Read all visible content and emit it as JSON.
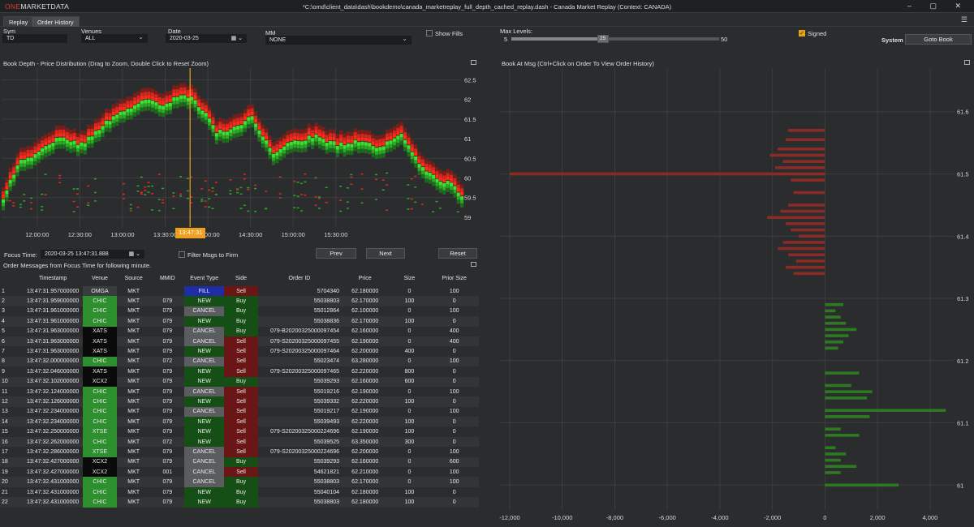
{
  "app": {
    "logo_one": "ONE",
    "logo_rest": "MARKETDATA",
    "title": "*C:\\omd\\client_data\\dash\\bookdemo\\canada_marketreplay_full_depth_cached_replay.dash - Canada Market Replay (Context: CANADA)",
    "win_controls": "–  ▢  ✕"
  },
  "tabs": [
    {
      "label": "Replay"
    },
    {
      "label": "Order History"
    }
  ],
  "controls": {
    "sym_label": "Sym",
    "sym_value": "TD",
    "venues_label": "Venues",
    "venues_value": "ALL",
    "date_label": "Date",
    "date_value": "2020-03-25",
    "mm_label": "MM",
    "mm_value": "NONE",
    "show_fills_label": "Show Fills",
    "max_levels_label": "Max Levels:",
    "max_min": "5",
    "max_val": "25",
    "max_max": "50",
    "max_level_fraction": 0.44,
    "signed_label": "Signed",
    "system_label": "System",
    "goto_book": "Goto Book"
  },
  "left_chart": {
    "title": "Book Depth - Price Distribution (Drag to Zoom, Double Click to Reset Zoom)",
    "focus_marker": "13:47:31"
  },
  "focus": {
    "label": "Focus Time:",
    "value": "2020-03-25 13:47:31.888",
    "filter_label": "Filter Msgs to Firm",
    "prev": "Prev",
    "next": "Next",
    "reset": "Reset"
  },
  "orders": {
    "title": "Order Messages from Focus Time for following minute.",
    "columns": [
      "",
      "Timestamp",
      "Venue",
      "Source",
      "MMID",
      "Event Type",
      "Side",
      "Order ID",
      "Price",
      "Size",
      "Prior Size"
    ],
    "rows": [
      [
        "1",
        "13:47:31.957000000",
        "OMGA",
        "MKT",
        "",
        "FILL",
        "Sell",
        "5704340",
        "62.180000",
        "0",
        "100"
      ],
      [
        "2",
        "13:47:31.959000000",
        "CHIC",
        "MKT",
        "079",
        "NEW",
        "Buy",
        "55038803",
        "62.170000",
        "100",
        "0"
      ],
      [
        "3",
        "13:47:31.961000000",
        "CHIC",
        "MKT",
        "079",
        "CANCEL",
        "Buy",
        "55012864",
        "62.100000",
        "0",
        "100"
      ],
      [
        "4",
        "13:47:31.961000000",
        "CHIC",
        "MKT",
        "079",
        "NEW",
        "Buy",
        "55038836",
        "62.170000",
        "100",
        "0"
      ],
      [
        "5",
        "13:47:31.963000000",
        "XATS",
        "MKT",
        "079",
        "CANCEL",
        "Buy",
        "079-B20200325000097454",
        "62.160000",
        "0",
        "400"
      ],
      [
        "6",
        "13:47:31.963000000",
        "XATS",
        "MKT",
        "079",
        "CANCEL",
        "Sell",
        "079-S20200325000097455",
        "62.190000",
        "0",
        "400"
      ],
      [
        "7",
        "13:47:31.963000000",
        "XATS",
        "MKT",
        "079",
        "NEW",
        "Sell",
        "079-S20200325000097464",
        "62.200000",
        "400",
        "0"
      ],
      [
        "8",
        "13:47:32.000000000",
        "CHIC",
        "MKT",
        "072",
        "CANCEL",
        "Sell",
        "55023474",
        "63.280000",
        "0",
        "100"
      ],
      [
        "9",
        "13:47:32.046000000",
        "XATS",
        "MKT",
        "079",
        "NEW",
        "Sell",
        "079-S20200325000097465",
        "62.220000",
        "800",
        "0"
      ],
      [
        "10",
        "13:47:32.102000000",
        "XCX2",
        "MKT",
        "079",
        "NEW",
        "Buy",
        "55039293",
        "62.160000",
        "600",
        "0"
      ],
      [
        "11",
        "13:47:32.124000000",
        "CHIC",
        "MKT",
        "079",
        "CANCEL",
        "Sell",
        "55019216",
        "62.190000",
        "0",
        "100"
      ],
      [
        "12",
        "13:47:32.126000000",
        "CHIC",
        "MKT",
        "079",
        "NEW",
        "Sell",
        "55039332",
        "62.220000",
        "100",
        "0"
      ],
      [
        "13",
        "13:47:32.234000000",
        "CHIC",
        "MKT",
        "079",
        "CANCEL",
        "Sell",
        "55019217",
        "62.190000",
        "0",
        "100"
      ],
      [
        "14",
        "13:47:32.234000000",
        "CHIC",
        "MKT",
        "079",
        "NEW",
        "Sell",
        "55039493",
        "62.220000",
        "100",
        "0"
      ],
      [
        "15",
        "13:47:32.250000000",
        "XTSE",
        "MKT",
        "079",
        "NEW",
        "Sell",
        "079-S20200325000224696",
        "62.190000",
        "100",
        "0"
      ],
      [
        "16",
        "13:47:32.262000000",
        "CHIC",
        "MKT",
        "072",
        "NEW",
        "Sell",
        "55039525",
        "63.350000",
        "300",
        "0"
      ],
      [
        "17",
        "13:47:32.286000000",
        "XTSE",
        "MKT",
        "079",
        "CANCEL",
        "Sell",
        "079-S20200325000224696",
        "62.200000",
        "0",
        "100"
      ],
      [
        "18",
        "13:47:32.427000000",
        "XCX2",
        "MKT",
        "079",
        "CANCEL",
        "Buy",
        "55039293",
        "62.160000",
        "0",
        "600"
      ],
      [
        "19",
        "13:47:32.427000000",
        "XCX2",
        "MKT",
        "001",
        "CANCEL",
        "Sell",
        "54621821",
        "62.210000",
        "0",
        "100"
      ],
      [
        "20",
        "13:47:32.431000000",
        "CHIC",
        "MKT",
        "079",
        "CANCEL",
        "Buy",
        "55038803",
        "62.170000",
        "0",
        "100"
      ],
      [
        "21",
        "13:47:32.431000000",
        "CHIC",
        "MKT",
        "079",
        "NEW",
        "Buy",
        "55040104",
        "62.180000",
        "100",
        "0"
      ],
      [
        "22",
        "13:47:32.431000000",
        "CHIC",
        "MKT",
        "079",
        "NEW",
        "Buy",
        "55038803",
        "62.180000",
        "100",
        "0"
      ]
    ]
  },
  "right_chart": {
    "title": "Book At Msg  (Ctrl+Click on Order To View Order History)"
  },
  "colors": {
    "bid": "#2aa82a",
    "ask": "#e02a1c",
    "ask_dark": "#8a2b25",
    "bid_dark": "#2d7a22",
    "focus_line": "#f0a020",
    "accent": "#e0a418"
  },
  "chart_data": [
    {
      "type": "heatmap",
      "title": "Book Depth - Price Distribution (Drag to Zoom, Double Click to Reset Zoom)",
      "x_ticks": [
        "12:00:00",
        "12:30:00",
        "13:00:00",
        "13:30:00",
        "14:00:00",
        "14:30:00",
        "15:00:00",
        "15:30:00"
      ],
      "y_ticks": [
        59,
        59.5,
        60,
        60.5,
        61,
        61.5,
        62,
        62.5
      ],
      "ylim": [
        58.75,
        62.8
      ],
      "x_range_minutes": [
        -25,
        298
      ],
      "focus_x_minute": 107.5,
      "mid_price": {
        "minutes": [
          -25,
          -15,
          0,
          15,
          30,
          45,
          60,
          75,
          90,
          100,
          107,
          115,
          125,
          135,
          150,
          165,
          180,
          195,
          210,
          225,
          240,
          255,
          260,
          270,
          280,
          290,
          298
        ],
        "values": [
          59.5,
          60.4,
          60.7,
          61.1,
          60.9,
          61.4,
          61.8,
          62.0,
          61.9,
          62.2,
          62.1,
          61.8,
          61.2,
          61.3,
          61.6,
          60.7,
          61.0,
          61.1,
          60.9,
          61.0,
          60.8,
          61.2,
          60.9,
          60.3,
          60.0,
          59.9,
          59.6
        ]
      }
    },
    {
      "type": "bar",
      "title": "Book At Msg  (Ctrl+Click on Order To View Order History)",
      "orientation": "horizontal",
      "x_ticks": [
        -12000,
        -10000,
        -8000,
        -6000,
        -4000,
        -2000,
        0,
        2000,
        4000
      ],
      "xlim": [
        -12400,
        4900
      ],
      "y_ticks": [
        61,
        61.1,
        61.2,
        61.3,
        61.4,
        61.5,
        61.6
      ],
      "ylim": [
        60.96,
        61.67
      ],
      "asks": [
        [
          61.57,
          -1400
        ],
        [
          61.555,
          -1500
        ],
        [
          61.54,
          -1800
        ],
        [
          61.53,
          -2100
        ],
        [
          61.52,
          -1600
        ],
        [
          61.51,
          -1900
        ],
        [
          61.5,
          -12000
        ],
        [
          61.49,
          -1300
        ],
        [
          61.47,
          -1200
        ],
        [
          61.45,
          -1400
        ],
        [
          61.44,
          -1700
        ],
        [
          61.43,
          -2200
        ],
        [
          61.42,
          -1500
        ],
        [
          61.41,
          -1300
        ],
        [
          61.4,
          -1000
        ],
        [
          61.39,
          -1600
        ],
        [
          61.38,
          -1800
        ],
        [
          61.37,
          -1400
        ],
        [
          61.36,
          -1100
        ],
        [
          61.35,
          -1500
        ],
        [
          61.34,
          -1200
        ]
      ],
      "bids": [
        [
          61.29,
          700
        ],
        [
          61.28,
          400
        ],
        [
          61.27,
          600
        ],
        [
          61.26,
          800
        ],
        [
          61.25,
          1200
        ],
        [
          61.24,
          900
        ],
        [
          61.23,
          700
        ],
        [
          61.22,
          500
        ],
        [
          61.18,
          1300
        ],
        [
          61.16,
          1000
        ],
        [
          61.15,
          1800
        ],
        [
          61.14,
          1600
        ],
        [
          61.12,
          4600
        ],
        [
          61.11,
          1700
        ],
        [
          61.09,
          600
        ],
        [
          61.08,
          1300
        ],
        [
          61.06,
          400
        ],
        [
          61.05,
          800
        ],
        [
          61.04,
          600
        ],
        [
          61.03,
          1200
        ],
        [
          61.02,
          600
        ],
        [
          61.0,
          2800
        ]
      ]
    }
  ]
}
